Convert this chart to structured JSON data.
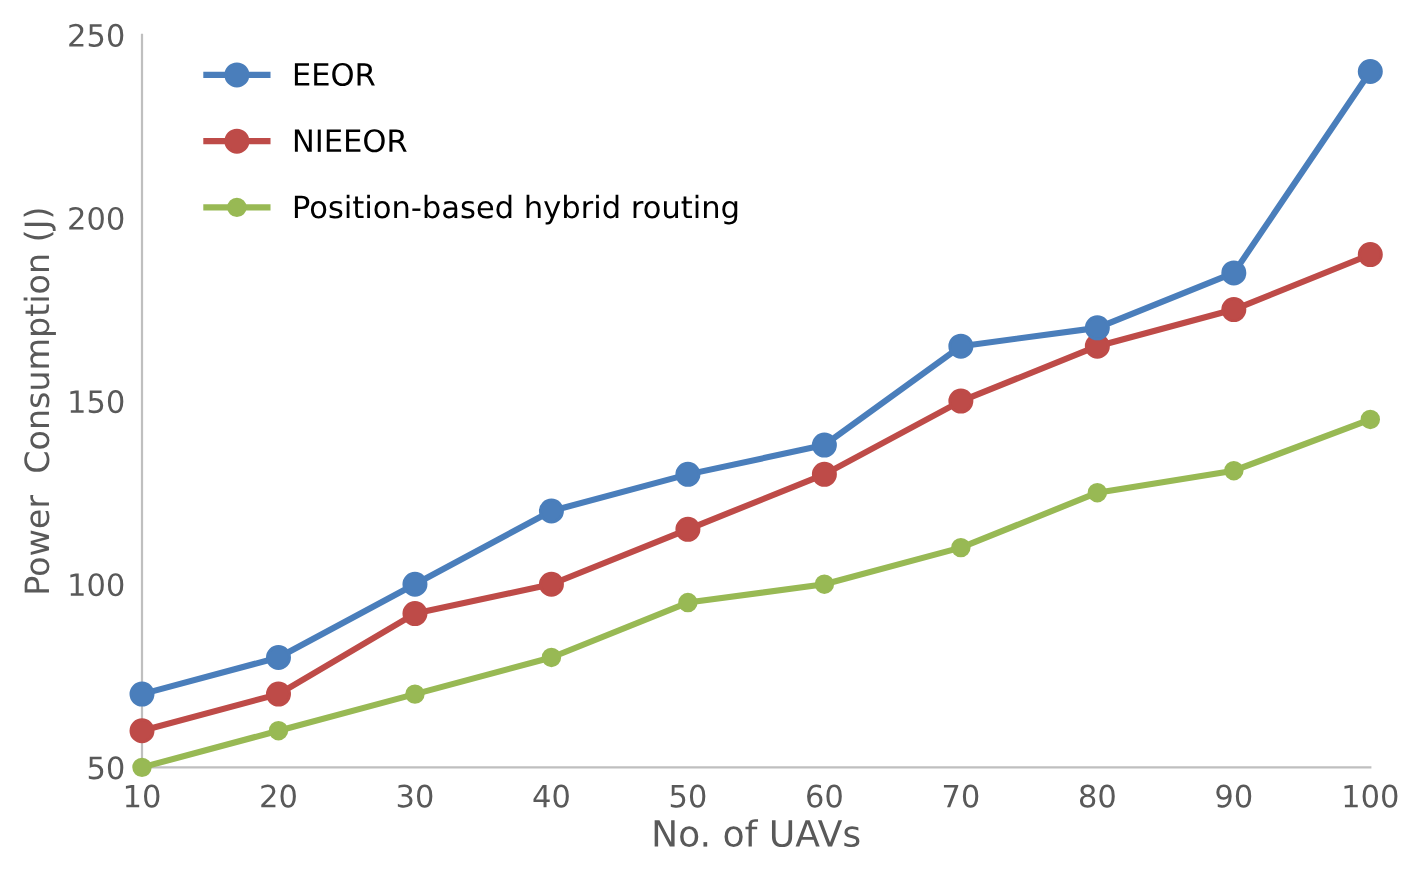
{
  "chart_data": {
    "type": "line",
    "xlabel": "No. of UAVs",
    "ylabel": "Power  Consumption (J)",
    "x": [
      10,
      20,
      30,
      40,
      50,
      60,
      70,
      80,
      90,
      100
    ],
    "series": [
      {
        "name": "EEOR",
        "color": "#4a7ebb",
        "values": [
          70,
          80,
          100,
          120,
          130,
          138,
          165,
          170,
          185,
          240
        ]
      },
      {
        "name": "NIEEOR",
        "color": "#be4b48",
        "values": [
          60,
          70,
          92,
          100,
          115,
          130,
          150,
          165,
          175,
          190
        ]
      },
      {
        "name": "Position-based hybrid routing",
        "color": "#98b954",
        "values": [
          50,
          60,
          70,
          80,
          95,
          100,
          110,
          125,
          131,
          145
        ]
      }
    ],
    "xlim": [
      10,
      100
    ],
    "xticks": [
      10,
      20,
      30,
      40,
      50,
      60,
      70,
      80,
      90,
      100
    ],
    "ylim": [
      50,
      250
    ],
    "yticks": [
      50,
      100,
      150,
      200,
      250
    ],
    "grid": false,
    "legend": "top left",
    "marker": "circle",
    "line_style": "solid"
  }
}
